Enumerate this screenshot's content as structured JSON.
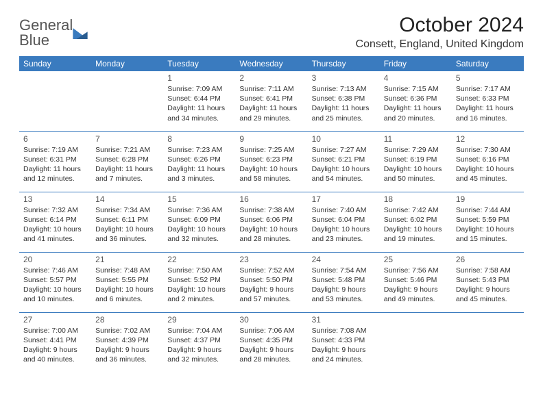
{
  "logo": {
    "line1": "General",
    "line2": "Blue"
  },
  "title": "October 2024",
  "location": "Consett, England, United Kingdom",
  "colors": {
    "header_bg": "#3a7bbf",
    "header_text": "#ffffff",
    "rule": "#3a7bbf",
    "text": "#333333",
    "logo_gray": "#555555",
    "logo_blue": "#3a7bbf",
    "background": "#ffffff"
  },
  "fonts": {
    "title_size": 30,
    "location_size": 16,
    "dayheader_size": 12,
    "daynum_size": 12,
    "body_size": 10.5
  },
  "day_headers": [
    "Sunday",
    "Monday",
    "Tuesday",
    "Wednesday",
    "Thursday",
    "Friday",
    "Saturday"
  ],
  "weeks": [
    [
      null,
      null,
      {
        "n": "1",
        "sr": "Sunrise: 7:09 AM",
        "ss": "Sunset: 6:44 PM",
        "dl": "Daylight: 11 hours and 34 minutes."
      },
      {
        "n": "2",
        "sr": "Sunrise: 7:11 AM",
        "ss": "Sunset: 6:41 PM",
        "dl": "Daylight: 11 hours and 29 minutes."
      },
      {
        "n": "3",
        "sr": "Sunrise: 7:13 AM",
        "ss": "Sunset: 6:38 PM",
        "dl": "Daylight: 11 hours and 25 minutes."
      },
      {
        "n": "4",
        "sr": "Sunrise: 7:15 AM",
        "ss": "Sunset: 6:36 PM",
        "dl": "Daylight: 11 hours and 20 minutes."
      },
      {
        "n": "5",
        "sr": "Sunrise: 7:17 AM",
        "ss": "Sunset: 6:33 PM",
        "dl": "Daylight: 11 hours and 16 minutes."
      }
    ],
    [
      {
        "n": "6",
        "sr": "Sunrise: 7:19 AM",
        "ss": "Sunset: 6:31 PM",
        "dl": "Daylight: 11 hours and 12 minutes."
      },
      {
        "n": "7",
        "sr": "Sunrise: 7:21 AM",
        "ss": "Sunset: 6:28 PM",
        "dl": "Daylight: 11 hours and 7 minutes."
      },
      {
        "n": "8",
        "sr": "Sunrise: 7:23 AM",
        "ss": "Sunset: 6:26 PM",
        "dl": "Daylight: 11 hours and 3 minutes."
      },
      {
        "n": "9",
        "sr": "Sunrise: 7:25 AM",
        "ss": "Sunset: 6:23 PM",
        "dl": "Daylight: 10 hours and 58 minutes."
      },
      {
        "n": "10",
        "sr": "Sunrise: 7:27 AM",
        "ss": "Sunset: 6:21 PM",
        "dl": "Daylight: 10 hours and 54 minutes."
      },
      {
        "n": "11",
        "sr": "Sunrise: 7:29 AM",
        "ss": "Sunset: 6:19 PM",
        "dl": "Daylight: 10 hours and 50 minutes."
      },
      {
        "n": "12",
        "sr": "Sunrise: 7:30 AM",
        "ss": "Sunset: 6:16 PM",
        "dl": "Daylight: 10 hours and 45 minutes."
      }
    ],
    [
      {
        "n": "13",
        "sr": "Sunrise: 7:32 AM",
        "ss": "Sunset: 6:14 PM",
        "dl": "Daylight: 10 hours and 41 minutes."
      },
      {
        "n": "14",
        "sr": "Sunrise: 7:34 AM",
        "ss": "Sunset: 6:11 PM",
        "dl": "Daylight: 10 hours and 36 minutes."
      },
      {
        "n": "15",
        "sr": "Sunrise: 7:36 AM",
        "ss": "Sunset: 6:09 PM",
        "dl": "Daylight: 10 hours and 32 minutes."
      },
      {
        "n": "16",
        "sr": "Sunrise: 7:38 AM",
        "ss": "Sunset: 6:06 PM",
        "dl": "Daylight: 10 hours and 28 minutes."
      },
      {
        "n": "17",
        "sr": "Sunrise: 7:40 AM",
        "ss": "Sunset: 6:04 PM",
        "dl": "Daylight: 10 hours and 23 minutes."
      },
      {
        "n": "18",
        "sr": "Sunrise: 7:42 AM",
        "ss": "Sunset: 6:02 PM",
        "dl": "Daylight: 10 hours and 19 minutes."
      },
      {
        "n": "19",
        "sr": "Sunrise: 7:44 AM",
        "ss": "Sunset: 5:59 PM",
        "dl": "Daylight: 10 hours and 15 minutes."
      }
    ],
    [
      {
        "n": "20",
        "sr": "Sunrise: 7:46 AM",
        "ss": "Sunset: 5:57 PM",
        "dl": "Daylight: 10 hours and 10 minutes."
      },
      {
        "n": "21",
        "sr": "Sunrise: 7:48 AM",
        "ss": "Sunset: 5:55 PM",
        "dl": "Daylight: 10 hours and 6 minutes."
      },
      {
        "n": "22",
        "sr": "Sunrise: 7:50 AM",
        "ss": "Sunset: 5:52 PM",
        "dl": "Daylight: 10 hours and 2 minutes."
      },
      {
        "n": "23",
        "sr": "Sunrise: 7:52 AM",
        "ss": "Sunset: 5:50 PM",
        "dl": "Daylight: 9 hours and 57 minutes."
      },
      {
        "n": "24",
        "sr": "Sunrise: 7:54 AM",
        "ss": "Sunset: 5:48 PM",
        "dl": "Daylight: 9 hours and 53 minutes."
      },
      {
        "n": "25",
        "sr": "Sunrise: 7:56 AM",
        "ss": "Sunset: 5:46 PM",
        "dl": "Daylight: 9 hours and 49 minutes."
      },
      {
        "n": "26",
        "sr": "Sunrise: 7:58 AM",
        "ss": "Sunset: 5:43 PM",
        "dl": "Daylight: 9 hours and 45 minutes."
      }
    ],
    [
      {
        "n": "27",
        "sr": "Sunrise: 7:00 AM",
        "ss": "Sunset: 4:41 PM",
        "dl": "Daylight: 9 hours and 40 minutes."
      },
      {
        "n": "28",
        "sr": "Sunrise: 7:02 AM",
        "ss": "Sunset: 4:39 PM",
        "dl": "Daylight: 9 hours and 36 minutes."
      },
      {
        "n": "29",
        "sr": "Sunrise: 7:04 AM",
        "ss": "Sunset: 4:37 PM",
        "dl": "Daylight: 9 hours and 32 minutes."
      },
      {
        "n": "30",
        "sr": "Sunrise: 7:06 AM",
        "ss": "Sunset: 4:35 PM",
        "dl": "Daylight: 9 hours and 28 minutes."
      },
      {
        "n": "31",
        "sr": "Sunrise: 7:08 AM",
        "ss": "Sunset: 4:33 PM",
        "dl": "Daylight: 9 hours and 24 minutes."
      },
      null,
      null
    ]
  ]
}
